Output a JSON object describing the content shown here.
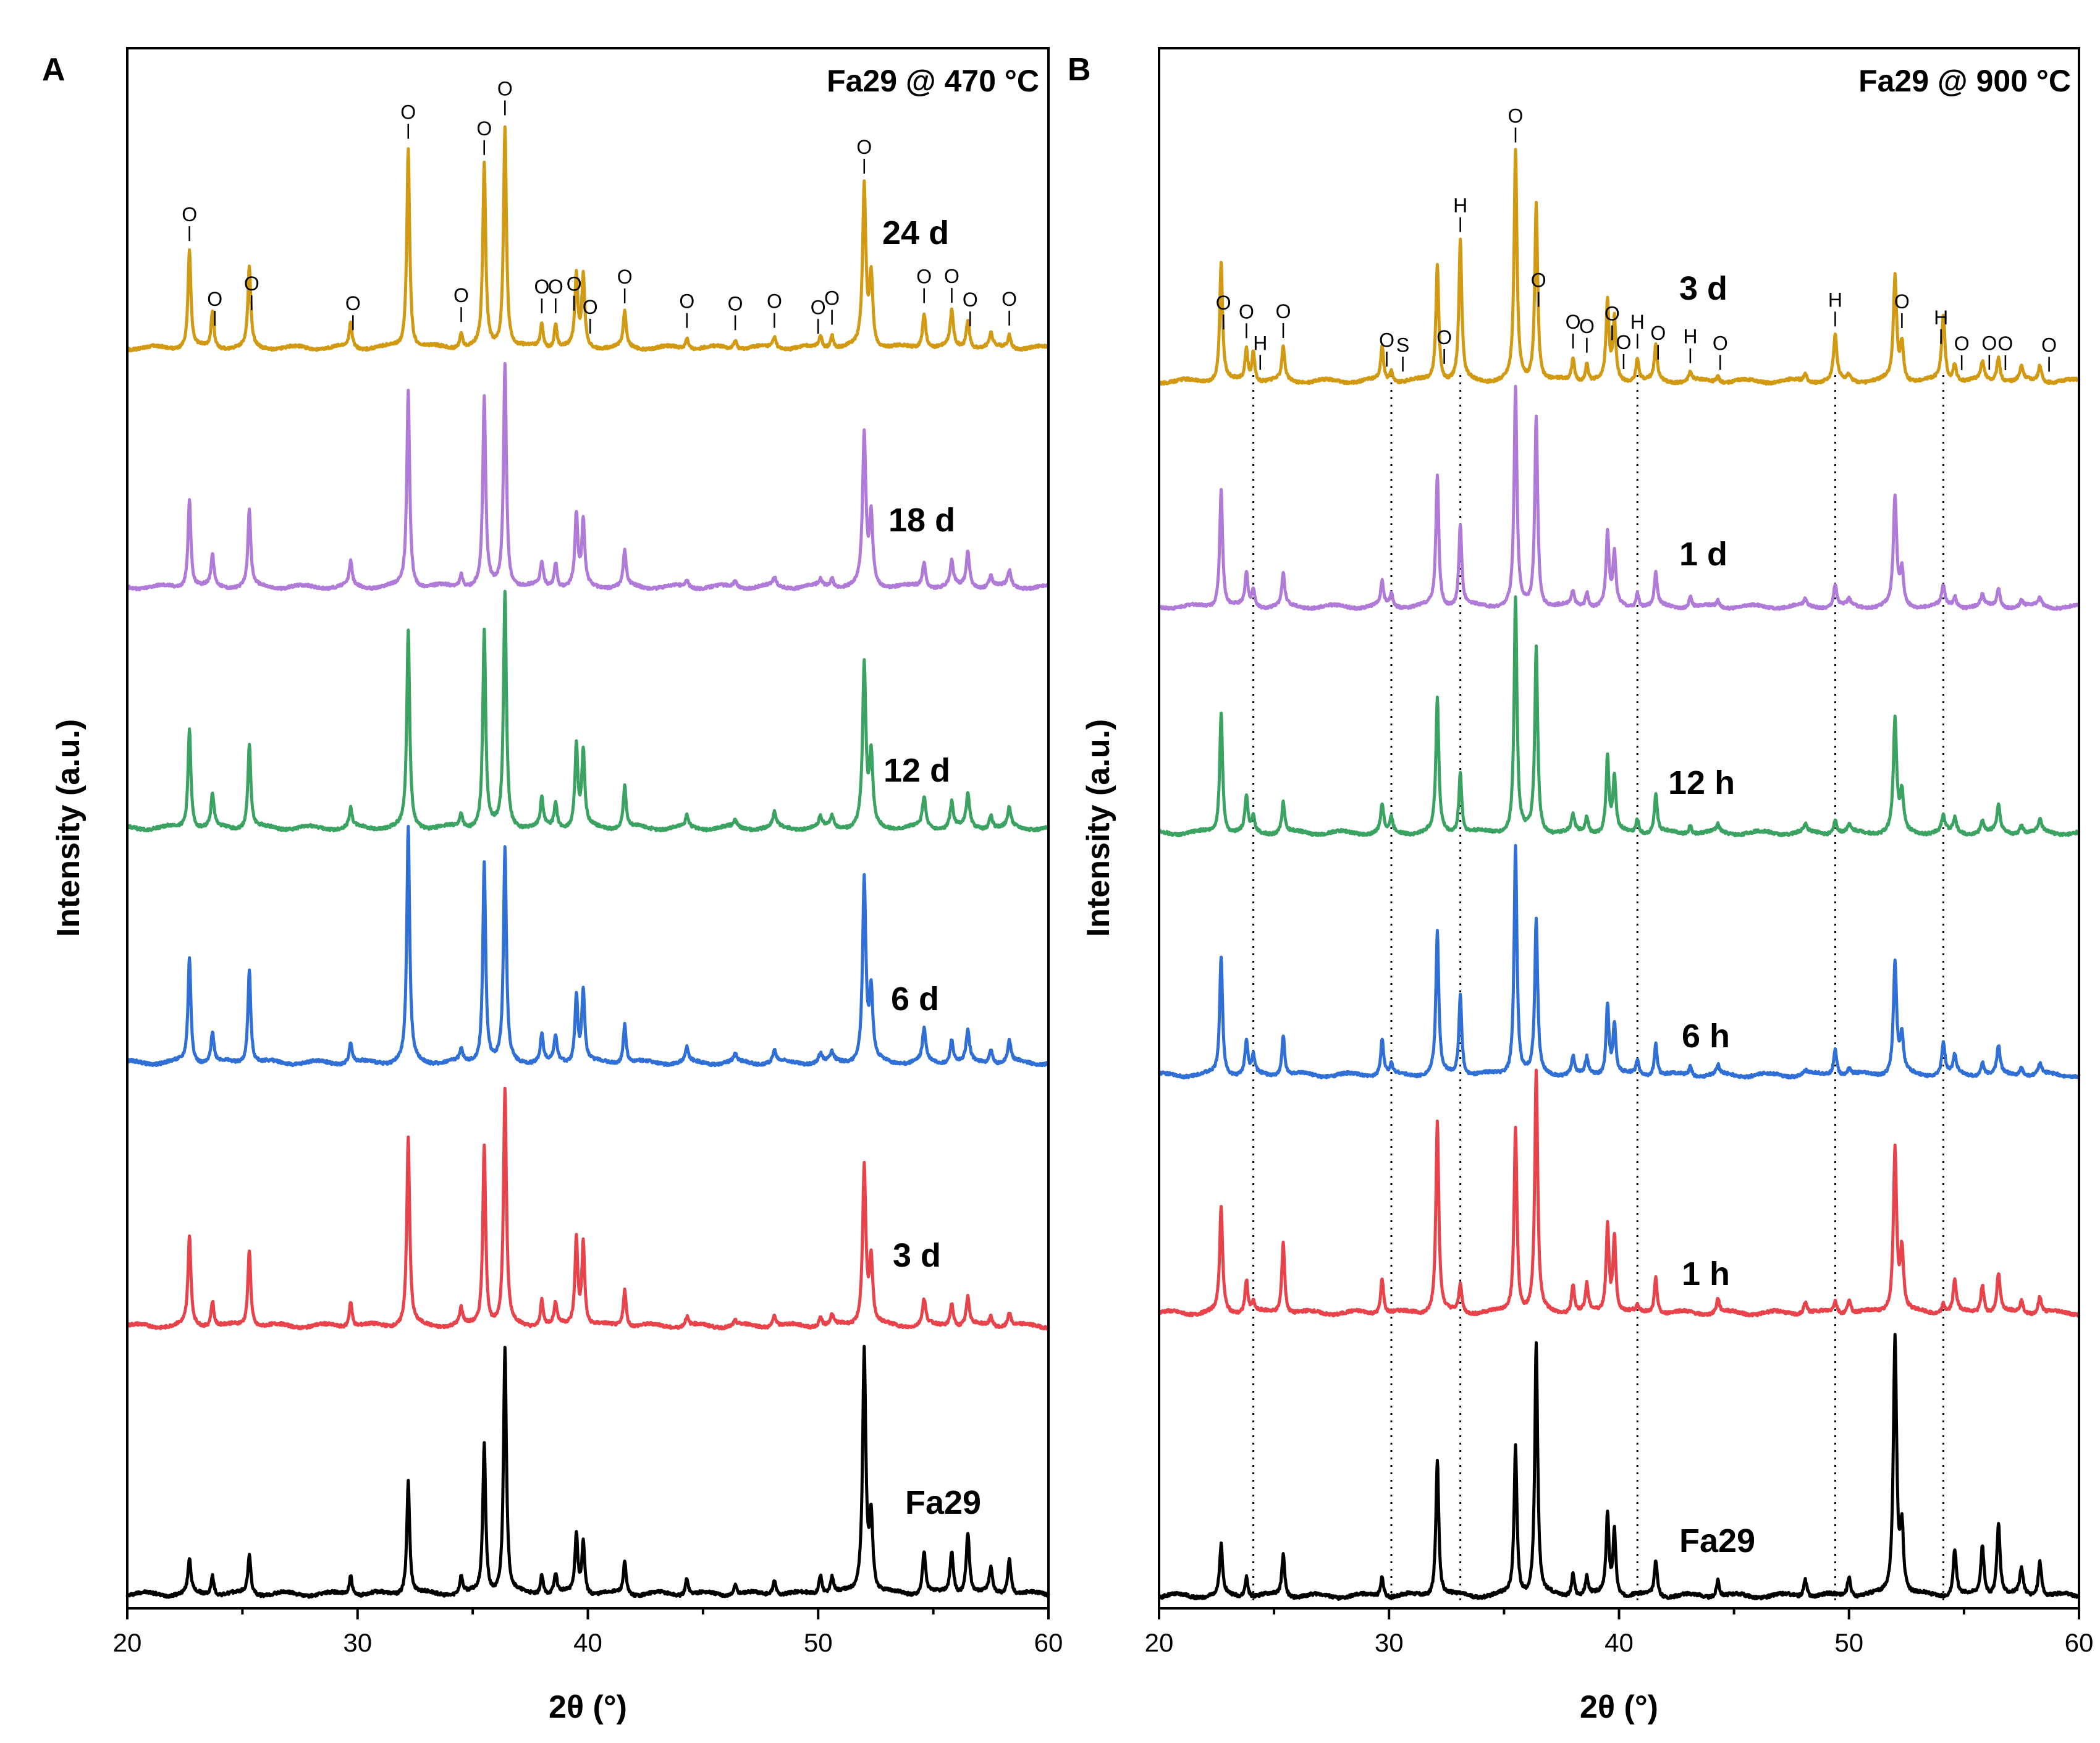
{
  "chart_data": [
    {
      "type": "line",
      "panel": "A",
      "title": "Fa29 @ 470 °C",
      "xlabel": "2θ (°)",
      "ylabel": "Intensity (a.u.)",
      "xlim": [
        20,
        60
      ],
      "xticks": [
        20,
        30,
        40,
        50,
        60
      ],
      "grid": false,
      "peaks": [
        22.7,
        23.7,
        25.3,
        29.7,
        32.2,
        34.5,
        35.5,
        36.4,
        38.0,
        38.6,
        39.5,
        39.8,
        41.6,
        44.3,
        46.4,
        48.1,
        50.1,
        50.6,
        52.0,
        52.3,
        54.6,
        55.8,
        56.5,
        57.5,
        58.3
      ],
      "series": [
        {
          "name": "Fa29",
          "label": "Fa29",
          "color": "#000000",
          "values": [
            0.14,
            0.08,
            0.16,
            0.08,
            0.46,
            0.07,
            0.6,
            1.0,
            0.08,
            0.08,
            0.24,
            0.21,
            0.13,
            0.07,
            0.04,
            0.06,
            0.08,
            0.07,
            0.98,
            0.3,
            0.17,
            0.17,
            0.25,
            0.1,
            0.15
          ]
        },
        {
          "name": "3 d",
          "label": "3 d",
          "color": "#e8434a",
          "values": [
            0.38,
            0.11,
            0.33,
            0.11,
            0.8,
            0.07,
            0.77,
            1.0,
            0.11,
            0.09,
            0.37,
            0.35,
            0.16,
            0.04,
            0.02,
            0.05,
            0.04,
            0.04,
            0.68,
            0.27,
            0.11,
            0.1,
            0.12,
            0.04,
            0.06
          ]
        },
        {
          "name": "6 d",
          "label": "6 d",
          "color": "#2f6fd6",
          "values": [
            0.45,
            0.13,
            0.4,
            0.09,
            1.0,
            0.05,
            0.85,
            0.9,
            0.12,
            0.11,
            0.29,
            0.31,
            0.17,
            0.06,
            0.03,
            0.05,
            0.04,
            0.04,
            0.78,
            0.29,
            0.14,
            0.1,
            0.13,
            0.06,
            0.09
          ]
        },
        {
          "name": "12 d",
          "label": "12 d",
          "color": "#3ba362",
          "values": [
            0.43,
            0.14,
            0.36,
            0.08,
            0.84,
            0.06,
            0.84,
            1.0,
            0.12,
            0.11,
            0.35,
            0.32,
            0.18,
            0.05,
            0.03,
            0.06,
            0.04,
            0.05,
            0.69,
            0.3,
            0.13,
            0.11,
            0.14,
            0.06,
            0.08
          ]
        },
        {
          "name": "18 d",
          "label": "18 d",
          "color": "#b07ad9",
          "values": [
            0.4,
            0.14,
            0.34,
            0.11,
            0.88,
            0.06,
            0.84,
            1.0,
            0.11,
            0.11,
            0.32,
            0.29,
            0.16,
            0.03,
            0.03,
            0.04,
            0.03,
            0.04,
            0.68,
            0.31,
            0.11,
            0.11,
            0.16,
            0.05,
            0.07
          ]
        },
        {
          "name": "24 d",
          "label": "24 d",
          "color": "#d19a12",
          "values": [
            0.44,
            0.16,
            0.36,
            0.11,
            0.9,
            0.07,
            0.82,
            1.0,
            0.11,
            0.11,
            0.32,
            0.32,
            0.16,
            0.05,
            0.04,
            0.05,
            0.05,
            0.06,
            0.72,
            0.32,
            0.16,
            0.16,
            0.13,
            0.06,
            0.06
          ]
        }
      ],
      "annotations": [
        {
          "text": "O",
          "x": 22.7
        },
        {
          "text": "O",
          "x": 23.8
        },
        {
          "text": "O",
          "x": 25.4
        },
        {
          "text": "O",
          "x": 29.8
        },
        {
          "text": "O",
          "x": 32.2
        },
        {
          "text": "O",
          "x": 34.5
        },
        {
          "text": "O",
          "x": 35.5
        },
        {
          "text": "O",
          "x": 36.4
        },
        {
          "text": "O",
          "x": 38.0
        },
        {
          "text": "O",
          "x": 38.6
        },
        {
          "text": "O",
          "x": 39.4
        },
        {
          "text": "O",
          "x": 40.1
        },
        {
          "text": "O",
          "x": 41.6
        },
        {
          "text": "O",
          "x": 44.3
        },
        {
          "text": "O",
          "x": 46.4
        },
        {
          "text": "O",
          "x": 48.1
        },
        {
          "text": "O",
          "x": 50.0
        },
        {
          "text": "O",
          "x": 50.6
        },
        {
          "text": "O",
          "x": 52.0
        },
        {
          "text": "O",
          "x": 54.6
        },
        {
          "text": "O",
          "x": 55.8
        },
        {
          "text": "O",
          "x": 56.6
        },
        {
          "text": "O",
          "x": 58.3
        }
      ]
    },
    {
      "type": "line",
      "panel": "B",
      "title": "Fa29 @ 900 °C",
      "xlabel": "2θ (°)",
      "ylabel": "Intensity (a.u.)",
      "xlim": [
        20,
        60
      ],
      "xticks": [
        20,
        30,
        40,
        50,
        60
      ],
      "grid": false,
      "reference_lines": [
        24.1,
        30.1,
        33.1,
        40.8,
        49.4,
        54.1
      ],
      "peaks": [
        22.7,
        23.8,
        24.1,
        25.4,
        29.7,
        30.1,
        32.1,
        33.1,
        35.5,
        36.4,
        38.0,
        38.6,
        39.5,
        39.8,
        40.8,
        41.6,
        43.1,
        44.3,
        48.1,
        49.4,
        50.0,
        52.0,
        52.3,
        54.1,
        54.6,
        55.8,
        56.5,
        57.5,
        58.3
      ],
      "series": [
        {
          "name": "Fa29",
          "label": "Fa29",
          "color": "#000000",
          "values": [
            0.19,
            0.08,
            0.0,
            0.16,
            0.08,
            0.0,
            0.53,
            0.0,
            0.57,
            0.97,
            0.09,
            0.07,
            0.31,
            0.25,
            0.0,
            0.14,
            0.0,
            0.07,
            0.07,
            0.0,
            0.08,
            1.0,
            0.25,
            0.0,
            0.18,
            0.19,
            0.28,
            0.1,
            0.14
          ]
        },
        {
          "name": "1 h",
          "label": "1 h",
          "color": "#e8434a",
          "values": [
            0.44,
            0.14,
            0.04,
            0.3,
            0.15,
            0.0,
            0.8,
            0.12,
            0.77,
            1.0,
            0.12,
            0.11,
            0.36,
            0.32,
            0.02,
            0.15,
            0.0,
            0.06,
            0.05,
            0.05,
            0.06,
            0.68,
            0.25,
            0.04,
            0.13,
            0.12,
            0.16,
            0.05,
            0.07
          ]
        },
        {
          "name": "6 h",
          "label": "6 h",
          "color": "#2f6fd6",
          "values": [
            0.52,
            0.15,
            0.08,
            0.18,
            0.16,
            0.04,
            0.62,
            0.35,
            1.0,
            0.67,
            0.08,
            0.07,
            0.31,
            0.22,
            0.06,
            0.14,
            0.04,
            0.04,
            0.02,
            0.12,
            0.03,
            0.49,
            0.16,
            0.14,
            0.08,
            0.06,
            0.12,
            0.04,
            0.05
          ]
        },
        {
          "name": "12 h",
          "label": "12 h",
          "color": "#3ba362",
          "values": [
            0.52,
            0.15,
            0.06,
            0.13,
            0.12,
            0.06,
            0.57,
            0.26,
            1.0,
            0.78,
            0.07,
            0.07,
            0.32,
            0.23,
            0.06,
            0.16,
            0.04,
            0.03,
            0.03,
            0.06,
            0.03,
            0.48,
            0.16,
            0.07,
            0.06,
            0.05,
            0.11,
            0.04,
            0.05
          ]
        },
        {
          "name": "1 d",
          "label": "1 d",
          "color": "#b07ad9",
          "values": [
            0.55,
            0.15,
            0.08,
            0.15,
            0.11,
            0.06,
            0.61,
            0.38,
            1.0,
            0.88,
            0.07,
            0.07,
            0.34,
            0.24,
            0.07,
            0.15,
            0.05,
            0.03,
            0.03,
            0.1,
            0.03,
            0.5,
            0.16,
            0.09,
            0.05,
            0.05,
            0.08,
            0.03,
            0.04
          ]
        },
        {
          "name": "3 d",
          "label": "3 d",
          "color": "#d19a12",
          "values": [
            0.52,
            0.14,
            0.13,
            0.15,
            0.15,
            0.05,
            0.51,
            0.61,
            1.0,
            0.78,
            0.1,
            0.08,
            0.34,
            0.27,
            0.1,
            0.15,
            0.04,
            0.03,
            0.03,
            0.2,
            0.03,
            0.45,
            0.16,
            0.29,
            0.08,
            0.08,
            0.11,
            0.06,
            0.07
          ]
        }
      ],
      "annotations": [
        {
          "text": "O",
          "x": 22.8
        },
        {
          "text": "O",
          "x": 23.8
        },
        {
          "text": "H",
          "x": 24.4
        },
        {
          "text": "O",
          "x": 25.4
        },
        {
          "text": "O",
          "x": 29.9
        },
        {
          "text": "S",
          "x": 30.6
        },
        {
          "text": "O",
          "x": 32.4
        },
        {
          "text": "H",
          "x": 33.1
        },
        {
          "text": "O",
          "x": 35.5
        },
        {
          "text": "O",
          "x": 36.5
        },
        {
          "text": "O",
          "x": 38.0
        },
        {
          "text": "O",
          "x": 38.6
        },
        {
          "text": "O",
          "x": 39.7
        },
        {
          "text": "O",
          "x": 40.2
        },
        {
          "text": "H",
          "x": 40.8
        },
        {
          "text": "O",
          "x": 41.7
        },
        {
          "text": "H",
          "x": 43.1
        },
        {
          "text": "O",
          "x": 44.4
        },
        {
          "text": "H",
          "x": 49.4
        },
        {
          "text": "O",
          "x": 52.3
        },
        {
          "text": "H",
          "x": 54.0
        },
        {
          "text": "O",
          "x": 54.9
        },
        {
          "text": "O",
          "x": 56.1
        },
        {
          "text": "O",
          "x": 56.8
        },
        {
          "text": "O",
          "x": 58.7
        }
      ]
    }
  ]
}
